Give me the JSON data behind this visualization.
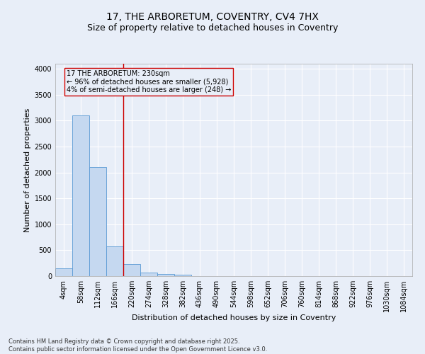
{
  "title_line1": "17, THE ARBORETUM, COVENTRY, CV4 7HX",
  "title_line2": "Size of property relative to detached houses in Coventry",
  "xlabel": "Distribution of detached houses by size in Coventry",
  "ylabel": "Number of detached properties",
  "categories": [
    "4sqm",
    "58sqm",
    "112sqm",
    "166sqm",
    "220sqm",
    "274sqm",
    "328sqm",
    "382sqm",
    "436sqm",
    "490sqm",
    "544sqm",
    "598sqm",
    "652sqm",
    "706sqm",
    "760sqm",
    "814sqm",
    "868sqm",
    "922sqm",
    "976sqm",
    "1030sqm",
    "1084sqm"
  ],
  "values": [
    150,
    3100,
    2100,
    575,
    230,
    75,
    45,
    30,
    0,
    0,
    0,
    0,
    0,
    0,
    0,
    0,
    0,
    0,
    0,
    0,
    0
  ],
  "bar_color": "#c5d8f0",
  "bar_edge_color": "#5b9bd5",
  "bar_linewidth": 0.6,
  "vline_color": "#cc0000",
  "vline_linewidth": 1.0,
  "vline_x": 3.5,
  "annotation_text": "17 THE ARBORETUM: 230sqm\n← 96% of detached houses are smaller (5,928)\n4% of semi-detached houses are larger (248) →",
  "annotation_fontsize": 7,
  "box_edge_color": "#cc0000",
  "box_face_color": "#e8eef8",
  "ylim": [
    0,
    4100
  ],
  "yticks": [
    0,
    500,
    1000,
    1500,
    2000,
    2500,
    3000,
    3500,
    4000
  ],
  "background_color": "#e8eef8",
  "plot_bg_color": "#e8eef8",
  "grid_color": "#ffffff",
  "footer_text": "Contains HM Land Registry data © Crown copyright and database right 2025.\nContains public sector information licensed under the Open Government Licence v3.0.",
  "footer_fontsize": 6,
  "title1_fontsize": 10,
  "title2_fontsize": 9,
  "xlabel_fontsize": 8,
  "ylabel_fontsize": 8,
  "tick_fontsize": 7
}
